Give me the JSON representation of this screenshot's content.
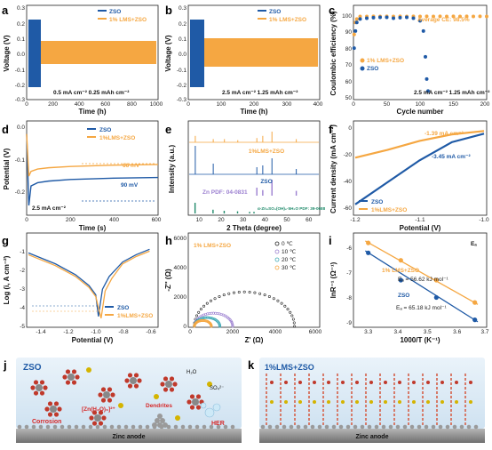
{
  "colors": {
    "zso": "#1f5aa6",
    "lms": "#f5a742",
    "panel_bg": "#d6e8f5",
    "anode": "#8c8c8c"
  },
  "panels": {
    "a": {
      "letter": "a",
      "legend": [
        "ZSO",
        "1% LMS+ZSO"
      ],
      "note": "0.5 mA cm⁻² 0.25 mAh cm⁻²",
      "xlabel": "Time (h)",
      "ylabel": "Voltage (V)",
      "xticks": [
        "0",
        "200",
        "400",
        "600",
        "800",
        "1000"
      ],
      "yticks": [
        "0.3",
        "0.2",
        "0.1",
        "0.0",
        "-0.1",
        "-0.2",
        "-0.3"
      ]
    },
    "b": {
      "letter": "b",
      "legend": [
        "ZSO",
        "1% LMS+ZSO"
      ],
      "note": "2.5 mA cm⁻² 1.25 mAh cm⁻²",
      "xlabel": "Time (h)",
      "ylabel": "Voltage (V)",
      "xticks": [
        "0",
        "100",
        "200",
        "300",
        "400"
      ],
      "yticks": [
        "0.3",
        "0.2",
        "0.1",
        "0.0",
        "-0.1",
        "-0.2",
        "-0.3"
      ]
    },
    "c": {
      "letter": "c",
      "legend": [
        "1% LMS+ZSO",
        "ZSO"
      ],
      "note": "2.5 mA cm⁻² 1.25 mAh cm⁻²",
      "avg": "Average CE: 98.5%",
      "xlabel": "Cycle number",
      "ylabel": "Coulombic efficiency (%)",
      "xticks": [
        "0",
        "50",
        "100",
        "150",
        "200"
      ],
      "yticks": [
        "100",
        "90",
        "80",
        "70",
        "60",
        "50"
      ]
    },
    "d": {
      "letter": "d",
      "legend": [
        "ZSO",
        "1%LMS+ZSO"
      ],
      "note": "2.5 mA cm⁻²",
      "ann1": "66 mV",
      "ann2": "90 mV",
      "xlabel": "Time (s)",
      "ylabel": "Potential (V)",
      "xticks": [
        "0",
        "200",
        "400",
        "600"
      ],
      "yticks": [
        "0.0",
        "-0.1",
        "-0.2"
      ]
    },
    "e": {
      "letter": "e",
      "series_a": "1%LMS+ZSO",
      "series_b": "ZSO",
      "ref1": "Zn PDF: 04-0831",
      "ref2": "α-Zn₄SO₄(OH)₆·5H₂O PDF: 39-0688",
      "xlabel": "2 Theta (degree)",
      "ylabel": "Intensity (a.u.)",
      "xticks": [
        "10",
        "20",
        "30",
        "40",
        "50",
        "60"
      ]
    },
    "f": {
      "letter": "f",
      "legend": [
        "ZSO",
        "1%LMS+ZSO"
      ],
      "ann1": "-1.39 mA cm⁻²",
      "ann2": "-3.45 mA cm⁻²",
      "xlabel": "Potential (V)",
      "ylabel": "Current density (mA cm⁻²)",
      "xticks": [
        "-1.2",
        "-1.1",
        "-1.0"
      ],
      "yticks": [
        "0",
        "-20",
        "-40",
        "-60"
      ]
    },
    "g": {
      "letter": "g",
      "legend": [
        "ZSO",
        "1%LMS+ZSO"
      ],
      "xlabel": "Potential (V)",
      "ylabel": "Log (i, A cm⁻²)",
      "xticks": [
        "-1.4",
        "-1.2",
        "-1.0",
        "-0.8",
        "-0.6"
      ],
      "yticks": [
        "-1",
        "-2",
        "-3",
        "-4",
        "-5"
      ]
    },
    "h": {
      "letter": "h",
      "title": "1% LMS+ZSO",
      "legend": [
        "0 ℃",
        "10 ℃",
        "20 ℃",
        "30 ℃"
      ],
      "xlabel": "Z' (Ω)",
      "ylabel": "-Z'' (Ω)",
      "xticks": [
        "0",
        "2000",
        "4000",
        "6000"
      ],
      "yticks": [
        "6000",
        "4000",
        "2000",
        "0"
      ]
    },
    "i": {
      "letter": "i",
      "corner": "Eₐ",
      "lms_label": "1% LMS+ZSO",
      "lms_ea": "Eₐ = 56.62 kJ mol⁻¹",
      "zso_label": "ZSO",
      "zso_ea": "Eₐ = 65.18 kJ mol⁻¹",
      "xlabel": "1000/T (K⁻¹)",
      "ylabel": "lnR⁻¹ (Ω⁻¹)",
      "xticks": [
        "3.3",
        "3.4",
        "3.5",
        "3.6",
        "3.7"
      ],
      "yticks": [
        "-6",
        "-7",
        "-8",
        "-9"
      ]
    },
    "j": {
      "letter": "j",
      "title": "ZSO",
      "h2o": "H₂O",
      "so4": "SO₄²⁻",
      "corrosion": "Corrosion",
      "complex": "[Zn(H₂O)₆]²⁺",
      "dendrites": "Dendrites",
      "her": "HER",
      "anode": "Zinc anode"
    },
    "k": {
      "letter": "k",
      "title": "1%LMS+ZSO",
      "anode": "Zinc anode"
    }
  },
  "chart_data": [
    {
      "panel": "a",
      "type": "line",
      "title": "",
      "xlabel": "Time (h)",
      "ylabel": "Voltage (V)",
      "xlim": [
        0,
        1000
      ],
      "ylim": [
        -0.3,
        0.3
      ],
      "series": [
        {
          "name": "ZSO",
          "x": [
            0,
            150
          ],
          "amplitude": [
            0.2,
            0.2
          ]
        },
        {
          "name": "1% LMS+ZSO",
          "x": [
            0,
            1000
          ],
          "amplitude": [
            0.08,
            0.07
          ]
        }
      ]
    },
    {
      "panel": "b",
      "type": "line",
      "title": "",
      "xlabel": "Time (h)",
      "ylabel": "Voltage (V)",
      "xlim": [
        0,
        400
      ],
      "ylim": [
        -0.3,
        0.3
      ],
      "series": [
        {
          "name": "ZSO",
          "x": [
            0,
            55
          ],
          "amplitude": [
            0.2,
            0.2
          ]
        },
        {
          "name": "1% LMS+ZSO",
          "x": [
            0,
            400
          ],
          "amplitude": [
            0.09,
            0.09
          ]
        }
      ]
    },
    {
      "panel": "c",
      "type": "scatter",
      "xlabel": "Cycle number",
      "ylabel": "Coulombic efficiency (%)",
      "xlim": [
        0,
        200
      ],
      "ylim": [
        50,
        105
      ],
      "series": [
        {
          "name": "1% LMS+ZSO",
          "x": [
            1,
            3,
            5,
            10,
            20,
            30,
            40,
            50,
            60,
            70,
            80,
            90,
            100,
            110,
            120,
            130,
            140,
            150,
            160,
            170,
            180,
            190,
            200
          ],
          "y": [
            88,
            95,
            97,
            98.5,
            98.5,
            98.6,
            98.5,
            98.6,
            98.5,
            98.6,
            98.5,
            98.6,
            98.5,
            98.6,
            98.5,
            98.6,
            98.5,
            98.6,
            98.5,
            98.6,
            98.5,
            98.6,
            98.5
          ]
        },
        {
          "name": "ZSO",
          "x": [
            1,
            3,
            5,
            10,
            20,
            30,
            40,
            50,
            60,
            70,
            80,
            90,
            100,
            105,
            108,
            110,
            112
          ],
          "y": [
            80,
            90,
            95,
            97,
            97.5,
            97.8,
            98,
            98,
            97.5,
            97.8,
            98,
            97.5,
            96,
            90,
            75,
            62,
            55
          ]
        }
      ]
    },
    {
      "panel": "d",
      "type": "line",
      "xlabel": "Time (s)",
      "ylabel": "Potential (V)",
      "xlim": [
        0,
        600
      ],
      "ylim": [
        -0.27,
        0.02
      ],
      "series": [
        {
          "name": "ZSO",
          "x": [
            0,
            10,
            20,
            50,
            100,
            200,
            300,
            400,
            500,
            600
          ],
          "y": [
            -0.02,
            -0.24,
            -0.18,
            -0.17,
            -0.165,
            -0.16,
            -0.158,
            -0.156,
            -0.155,
            -0.154
          ]
        },
        {
          "name": "1%LMS+ZSO",
          "x": [
            0,
            10,
            20,
            50,
            100,
            200,
            300,
            400,
            500,
            600
          ],
          "y": [
            -0.02,
            -0.15,
            -0.135,
            -0.128,
            -0.124,
            -0.12,
            -0.118,
            -0.116,
            -0.115,
            -0.114
          ]
        }
      ]
    },
    {
      "panel": "e",
      "type": "line",
      "xlabel": "2 Theta (degree)",
      "ylabel": "Intensity (a.u.)",
      "xlim": [
        5,
        65
      ],
      "series": [
        {
          "name": "1%LMS+ZSO",
          "peaks_x": [
            8.2,
            16.4,
            21.5,
            27.6,
            36.3,
            39.0,
            43.2,
            54.3
          ],
          "peaks_h": [
            0.3,
            0.15,
            0.15,
            0.1,
            0.2,
            0.3,
            0.5,
            0.15
          ]
        },
        {
          "name": "ZSO",
          "peaks_x": [
            8.2,
            16.4,
            36.3,
            39.0,
            43.2,
            54.3
          ],
          "peaks_h": [
            0.8,
            0.3,
            0.2,
            0.25,
            0.45,
            0.15
          ]
        },
        {
          "name": "Zn PDF: 04-0831",
          "peaks_x": [
            36.3,
            39.0,
            43.2,
            54.3
          ],
          "peaks_h": [
            0.5,
            0.35,
            1.0,
            0.3
          ]
        },
        {
          "name": "α-Zn₄SO₄(OH)₆·5H₂O PDF: 39-0688",
          "peaks_x": [
            8.1,
            16.3,
            21.4,
            27.5,
            33.0,
            35.0
          ],
          "peaks_h": [
            1.0,
            0.35,
            0.25,
            0.2,
            0.15,
            0.15
          ]
        }
      ]
    },
    {
      "panel": "f",
      "type": "line",
      "xlabel": "Potential (V)",
      "ylabel": "Current density (mA cm⁻²)",
      "xlim": [
        -1.2,
        -1.0
      ],
      "ylim": [
        -65,
        5
      ],
      "series": [
        {
          "name": "ZSO",
          "x": [
            -1.2,
            -1.15,
            -1.1,
            -1.05,
            -1.0
          ],
          "y": [
            -58,
            -41,
            -24,
            -10,
            -3.45
          ]
        },
        {
          "name": "1%LMS+ZSO",
          "x": [
            -1.2,
            -1.15,
            -1.1,
            -1.05,
            -1.0
          ],
          "y": [
            -22,
            -16,
            -9,
            -4,
            -1.39
          ]
        }
      ]
    },
    {
      "panel": "g",
      "type": "line",
      "xlabel": "Potential (V)",
      "ylabel": "Log (i, A cm⁻²)",
      "xlim": [
        -1.5,
        -0.55
      ],
      "ylim": [
        -5.5,
        -0.5
      ],
      "series": [
        {
          "name": "ZSO",
          "x": [
            -1.5,
            -1.3,
            -1.15,
            -1.05,
            -1.0,
            -0.98,
            -0.95,
            -0.9,
            -0.8,
            -0.7,
            -0.6
          ],
          "y": [
            -1.5,
            -2.1,
            -2.7,
            -3.3,
            -3.8,
            -5.0,
            -3.5,
            -2.8,
            -2.0,
            -1.6,
            -1.3
          ]
        },
        {
          "name": "1%LMS+ZSO",
          "x": [
            -1.5,
            -1.3,
            -1.15,
            -1.05,
            -1.0,
            -0.96,
            -0.93,
            -0.88,
            -0.8,
            -0.7,
            -0.6
          ],
          "y": [
            -1.6,
            -2.2,
            -2.8,
            -3.4,
            -3.9,
            -5.1,
            -3.6,
            -2.9,
            -2.1,
            -1.7,
            -1.4
          ]
        }
      ]
    },
    {
      "panel": "h",
      "type": "scatter",
      "title": "1% LMS+ZSO",
      "xlabel": "Z' (Ω)",
      "ylabel": "-Z'' (Ω)",
      "xlim": [
        0,
        6000
      ],
      "ylim": [
        0,
        6000
      ],
      "series": [
        {
          "name": "0 ℃",
          "diameter": 4700
        },
        {
          "name": "10 ℃",
          "diameter": 1800
        },
        {
          "name": "20 ℃",
          "diameter": 1200
        },
        {
          "name": "30 ℃",
          "diameter": 800
        }
      ]
    },
    {
      "panel": "i",
      "type": "scatter",
      "xlabel": "1000/T (K⁻¹)",
      "ylabel": "lnR⁻¹ (Ω⁻¹)",
      "xlim": [
        3.25,
        3.7
      ],
      "ylim": [
        -9.3,
        -5.5
      ],
      "series": [
        {
          "name": "1% LMS+ZSO",
          "x": [
            3.3,
            3.41,
            3.53,
            3.66
          ],
          "y": [
            -5.9,
            -6.6,
            -7.4,
            -8.3
          ]
        },
        {
          "name": "ZSO",
          "x": [
            3.3,
            3.41,
            3.53,
            3.66
          ],
          "y": [
            -6.3,
            -7.4,
            -8.1,
            -9.0
          ]
        }
      ]
    }
  ]
}
